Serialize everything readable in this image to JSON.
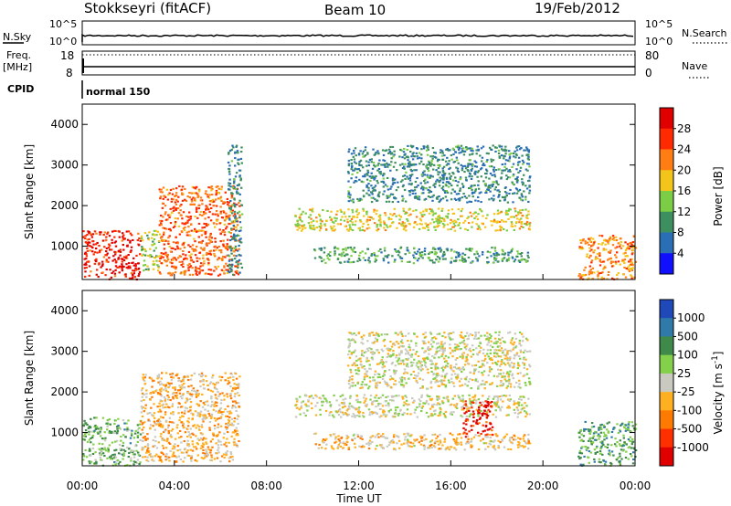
{
  "header": {
    "station": "Stokkseyri (fitACF)",
    "beam": "Beam 10",
    "date": "19/Feb/2012"
  },
  "strips": {
    "nsky_label": "N.Sky",
    "nsky_top": "10^5",
    "nsky_bottom": "10^0",
    "nsearch_label": "N.Search",
    "nsearch_top": "10^5",
    "nsearch_bottom": "10^0",
    "freq_label": "Freq.",
    "freq_unit": "[MHz]",
    "freq_top": "18",
    "freq_bottom": "8",
    "nave_label": "Nave",
    "nave_top": "80",
    "nave_bottom": "0",
    "cpid_label": "CPID",
    "cpid_value": "normal 150"
  },
  "axes": {
    "ylabel": "Slant Range [km]",
    "yticks": [
      "1000",
      "2000",
      "3000",
      "4000"
    ],
    "xlabel": "Time UT",
    "xticks": [
      "00:00",
      "04:00",
      "08:00",
      "12:00",
      "16:00",
      "20:00",
      "00:00"
    ]
  },
  "colorbars": {
    "power": {
      "label": "Power [dB]",
      "ticks": [
        "4",
        "8",
        "12",
        "16",
        "20",
        "24",
        "28"
      ],
      "colors": [
        "#1010ff",
        "#2a6fb5",
        "#3d8f5f",
        "#7acd44",
        "#f3c41a",
        "#ff7d12",
        "#ff2a00",
        "#e00000"
      ]
    },
    "velocity": {
      "label": "Velocity [m s^-1]",
      "ticks": [
        "1000",
        "500",
        "100",
        "25",
        "-25",
        "-100",
        "-500",
        "-1000"
      ],
      "colors": [
        "#1f48b8",
        "#2f7aa8",
        "#3f8a4a",
        "#84d04a",
        "#c9c9c0",
        "#ffb020",
        "#ff7a00",
        "#ff3000",
        "#e00000"
      ]
    }
  },
  "chart_data": [
    {
      "type": "heatmap",
      "title": "",
      "xlabel": "Time UT",
      "ylabel": "Slant Range [km]",
      "xlim": [
        "00:00",
        "24:00"
      ],
      "ylim": [
        180,
        4500
      ],
      "colorbar": "Power [dB]",
      "clim": [
        0,
        30
      ],
      "regions": [
        {
          "t0": 0.0,
          "t1": 2.5,
          "r0": 200,
          "r1": 1400,
          "value": 26
        },
        {
          "t0": 2.5,
          "t1": 3.3,
          "r0": 400,
          "r1": 1400,
          "value": 14
        },
        {
          "t0": 3.3,
          "t1": 6.8,
          "r0": 300,
          "r1": 2500,
          "value": 22
        },
        {
          "t0": 6.3,
          "t1": 6.9,
          "r0": 300,
          "r1": 3500,
          "value": 8
        },
        {
          "t0": 9.2,
          "t1": 19.4,
          "r0": 1400,
          "r1": 1950,
          "value": 16
        },
        {
          "t0": 10.0,
          "t1": 19.4,
          "r0": 600,
          "r1": 1000,
          "value": 10
        },
        {
          "t0": 11.5,
          "t1": 19.4,
          "r0": 2100,
          "r1": 3500,
          "value": 8
        },
        {
          "t0": 21.5,
          "t1": 24.0,
          "r0": 200,
          "r1": 1300,
          "value": 20
        }
      ]
    },
    {
      "type": "heatmap",
      "title": "",
      "xlabel": "Time UT",
      "ylabel": "Slant Range [km]",
      "xlim": [
        "00:00",
        "24:00"
      ],
      "ylim": [
        180,
        4500
      ],
      "colorbar": "Velocity [m s^-1]",
      "clim": [
        -1000,
        1000
      ],
      "regions": [
        {
          "t0": 0.0,
          "t1": 2.5,
          "r0": 200,
          "r1": 1400,
          "value": 300
        },
        {
          "t0": 2.5,
          "t1": 6.8,
          "r0": 300,
          "r1": 2500,
          "value": -200
        },
        {
          "t0": 9.2,
          "t1": 19.4,
          "r0": 1400,
          "r1": 1950,
          "value": 0
        },
        {
          "t0": 16.5,
          "t1": 17.8,
          "r0": 900,
          "r1": 1800,
          "value": -800
        },
        {
          "t0": 10.0,
          "t1": 19.4,
          "r0": 600,
          "r1": 1000,
          "value": -150
        },
        {
          "t0": 11.5,
          "t1": 19.4,
          "r0": 2100,
          "r1": 3500,
          "value": 0
        },
        {
          "t0": 21.5,
          "t1": 24.0,
          "r0": 200,
          "r1": 1300,
          "value": 400
        }
      ]
    }
  ]
}
